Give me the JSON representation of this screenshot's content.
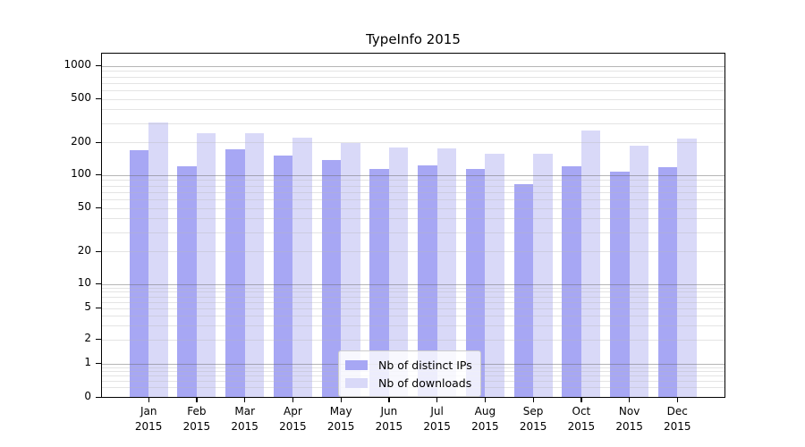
{
  "chart_data": {
    "type": "bar",
    "title": "TypeInfo 2015",
    "categories": [
      "Jan 2015",
      "Feb 2015",
      "Mar 2015",
      "Apr 2015",
      "May 2015",
      "Jun 2015",
      "Jul 2015",
      "Aug 2015",
      "Sep 2015",
      "Oct 2015",
      "Nov 2015",
      "Dec 2015"
    ],
    "series": [
      {
        "name": "Nb of distinct IPs",
        "color": "#a7a7f4",
        "values": [
          173,
          123,
          176,
          155,
          140,
          116,
          125,
          116,
          84,
          122,
          109,
          121
        ]
      },
      {
        "name": "Nb of downloads",
        "color": "#d9d9f8",
        "values": [
          310,
          245,
          248,
          225,
          200,
          181,
          180,
          160,
          159,
          263,
          190,
          221
        ]
      }
    ],
    "yscale": "symlog",
    "xlabel": "",
    "ylabel": "",
    "y_ticks": [
      0,
      1,
      2,
      5,
      10,
      20,
      50,
      100,
      200,
      500,
      1000
    ],
    "y_major_gridlines": [
      1,
      10,
      100,
      1000
    ],
    "y_minor_gridlines": [
      0.5,
      0.6,
      0.7,
      0.8,
      0.9,
      2,
      3,
      4,
      5,
      6,
      7,
      8,
      9,
      20,
      30,
      40,
      50,
      60,
      70,
      80,
      90,
      200,
      300,
      400,
      500,
      600,
      700,
      800,
      900
    ],
    "ylim": [
      0,
      1400
    ],
    "grid": "both",
    "legend_position": "lower center"
  }
}
